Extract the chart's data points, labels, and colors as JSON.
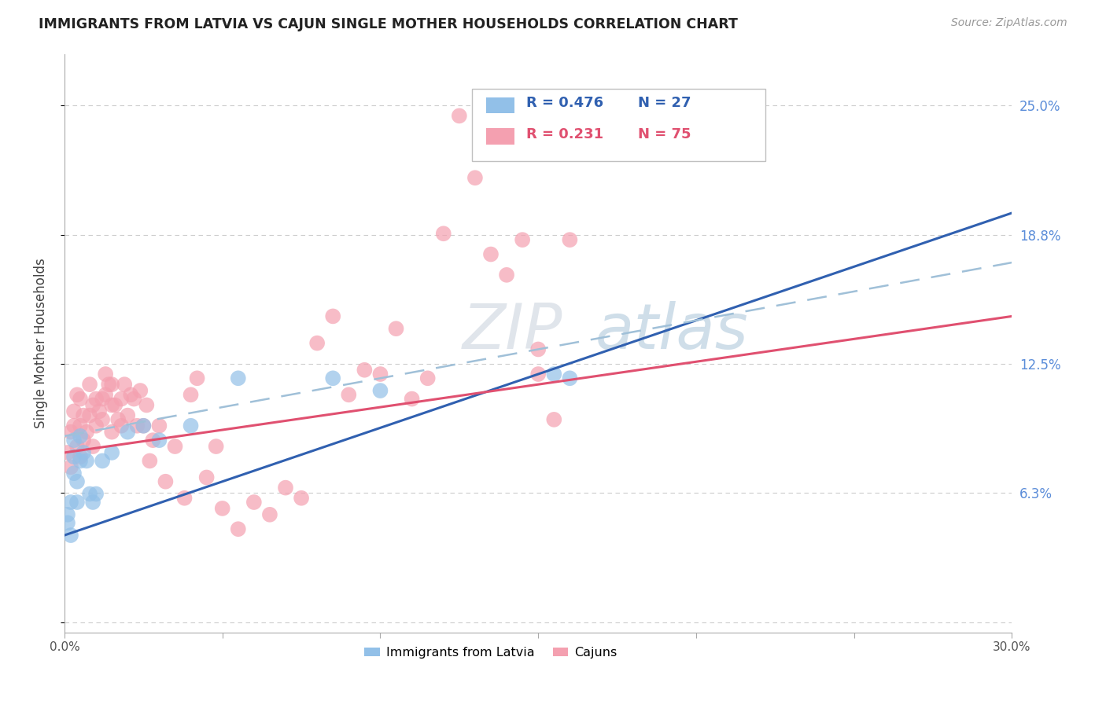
{
  "title": "IMMIGRANTS FROM LATVIA VS CAJUN SINGLE MOTHER HOUSEHOLDS CORRELATION CHART",
  "source": "Source: ZipAtlas.com",
  "ylabel": "Single Mother Households",
  "yticks": [
    0.0,
    0.0625,
    0.125,
    0.1875,
    0.25
  ],
  "ytick_labels": [
    "",
    "6.3%",
    "12.5%",
    "18.8%",
    "25.0%"
  ],
  "xlim": [
    0.0,
    0.3
  ],
  "ylim": [
    -0.005,
    0.275
  ],
  "legend_r1": "R = 0.476",
  "legend_n1": "N = 27",
  "legend_r2": "R = 0.231",
  "legend_n2": "N = 75",
  "color_blue": "#92C0E8",
  "color_pink": "#F4A0B0",
  "color_blue_line": "#3060B0",
  "color_pink_line": "#E05070",
  "color_dashed": "#A0C0D8",
  "color_ytick": "#5B8DD9",
  "watermark_color": "#D0DFF0",
  "legend_label1": "Immigrants from Latvia",
  "legend_label2": "Cajuns",
  "blue_scatter_x": [
    0.001,
    0.001,
    0.002,
    0.002,
    0.003,
    0.003,
    0.003,
    0.004,
    0.004,
    0.005,
    0.005,
    0.006,
    0.007,
    0.008,
    0.009,
    0.01,
    0.012,
    0.015,
    0.02,
    0.025,
    0.03,
    0.04,
    0.055,
    0.085,
    0.1,
    0.155,
    0.16
  ],
  "blue_scatter_y": [
    0.052,
    0.048,
    0.042,
    0.058,
    0.072,
    0.08,
    0.088,
    0.068,
    0.058,
    0.078,
    0.09,
    0.082,
    0.078,
    0.062,
    0.058,
    0.062,
    0.078,
    0.082,
    0.092,
    0.095,
    0.088,
    0.095,
    0.118,
    0.118,
    0.112,
    0.12,
    0.118
  ],
  "pink_scatter_x": [
    0.001,
    0.002,
    0.002,
    0.003,
    0.003,
    0.004,
    0.004,
    0.005,
    0.005,
    0.005,
    0.006,
    0.006,
    0.007,
    0.008,
    0.008,
    0.009,
    0.009,
    0.01,
    0.01,
    0.011,
    0.012,
    0.012,
    0.013,
    0.013,
    0.014,
    0.015,
    0.015,
    0.015,
    0.016,
    0.017,
    0.018,
    0.018,
    0.019,
    0.02,
    0.021,
    0.022,
    0.023,
    0.024,
    0.025,
    0.026,
    0.027,
    0.028,
    0.03,
    0.032,
    0.035,
    0.038,
    0.04,
    0.042,
    0.045,
    0.048,
    0.05,
    0.055,
    0.06,
    0.065,
    0.07,
    0.075,
    0.08,
    0.085,
    0.09,
    0.095,
    0.1,
    0.105,
    0.11,
    0.115,
    0.12,
    0.125,
    0.13,
    0.135,
    0.14,
    0.145,
    0.148,
    0.15,
    0.15,
    0.155,
    0.16
  ],
  "pink_scatter_y": [
    0.082,
    0.092,
    0.075,
    0.095,
    0.102,
    0.085,
    0.11,
    0.08,
    0.095,
    0.108,
    0.088,
    0.1,
    0.092,
    0.1,
    0.115,
    0.085,
    0.105,
    0.095,
    0.108,
    0.102,
    0.108,
    0.098,
    0.11,
    0.12,
    0.115,
    0.092,
    0.105,
    0.115,
    0.105,
    0.098,
    0.095,
    0.108,
    0.115,
    0.1,
    0.11,
    0.108,
    0.095,
    0.112,
    0.095,
    0.105,
    0.078,
    0.088,
    0.095,
    0.068,
    0.085,
    0.06,
    0.11,
    0.118,
    0.07,
    0.085,
    0.055,
    0.045,
    0.058,
    0.052,
    0.065,
    0.06,
    0.135,
    0.148,
    0.11,
    0.122,
    0.12,
    0.142,
    0.108,
    0.118,
    0.188,
    0.245,
    0.215,
    0.178,
    0.168,
    0.185,
    0.23,
    0.12,
    0.132,
    0.098,
    0.185
  ],
  "blue_line_intercept": 0.042,
  "blue_line_slope": 0.52,
  "pink_line_intercept": 0.082,
  "pink_line_slope": 0.22,
  "dashed_line_intercept": 0.09,
  "dashed_line_slope": 0.28
}
